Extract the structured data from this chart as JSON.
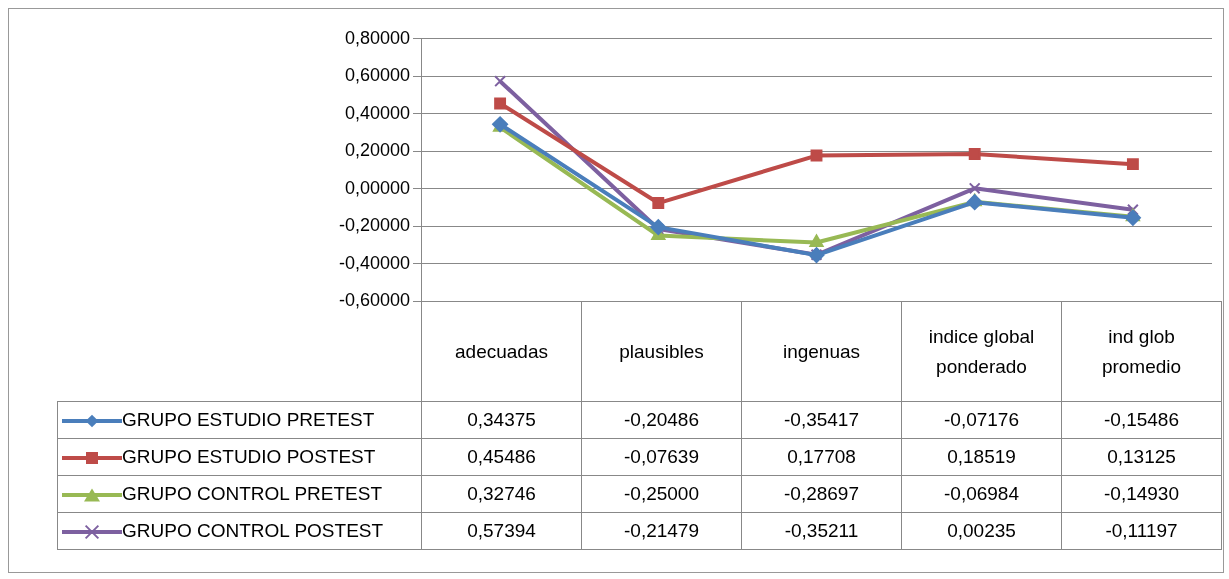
{
  "chart_data": {
    "type": "line",
    "categories": [
      "adecuadas",
      "plausibles",
      "ingenuas",
      "indice global ponderado",
      "ind glob promedio"
    ],
    "series": [
      {
        "name": "GRUPO ESTUDIO PRETEST",
        "color": "#4a7ebb",
        "marker": "diamond",
        "values": [
          0.34375,
          -0.20486,
          -0.35417,
          -0.07176,
          -0.15486
        ],
        "value_labels": [
          "0,34375",
          "-0,20486",
          "-0,35417",
          "-0,07176",
          "-0,15486"
        ]
      },
      {
        "name": "GRUPO ESTUDIO POSTEST",
        "color": "#be4b48",
        "marker": "square",
        "values": [
          0.45486,
          -0.07639,
          0.17708,
          0.18519,
          0.13125
        ],
        "value_labels": [
          "0,45486",
          "-0,07639",
          "0,17708",
          "0,18519",
          "0,13125"
        ]
      },
      {
        "name": "GRUPO CONTROL PRETEST",
        "color": "#98b954",
        "marker": "triangle",
        "values": [
          0.32746,
          -0.25,
          -0.28697,
          -0.06984,
          -0.1493
        ],
        "value_labels": [
          "0,32746",
          "-0,25000",
          "-0,28697",
          "-0,06984",
          "-0,14930"
        ]
      },
      {
        "name": "GRUPO CONTROL POSTEST",
        "color": "#7d60a0",
        "marker": "cross",
        "values": [
          0.57394,
          -0.21479,
          -0.35211,
          0.00235,
          -0.11197
        ],
        "value_labels": [
          "0,57394",
          "-0,21479",
          "-0,35211",
          "0,00235",
          "-0,11197"
        ]
      }
    ],
    "ylim": [
      -0.6,
      0.8
    ],
    "yticks": [
      {
        "value": -0.6,
        "label": "-0,60000"
      },
      {
        "value": -0.4,
        "label": "-0,40000"
      },
      {
        "value": -0.2,
        "label": "-0,20000"
      },
      {
        "value": 0,
        "label": "0,00000"
      },
      {
        "value": 0.2,
        "label": "0,20000"
      },
      {
        "value": 0.4,
        "label": "0,40000"
      },
      {
        "value": 0.6,
        "label": "0,60000"
      },
      {
        "value": 0.8,
        "label": "0,80000"
      }
    ],
    "grid": "y",
    "legend": "bottom"
  }
}
